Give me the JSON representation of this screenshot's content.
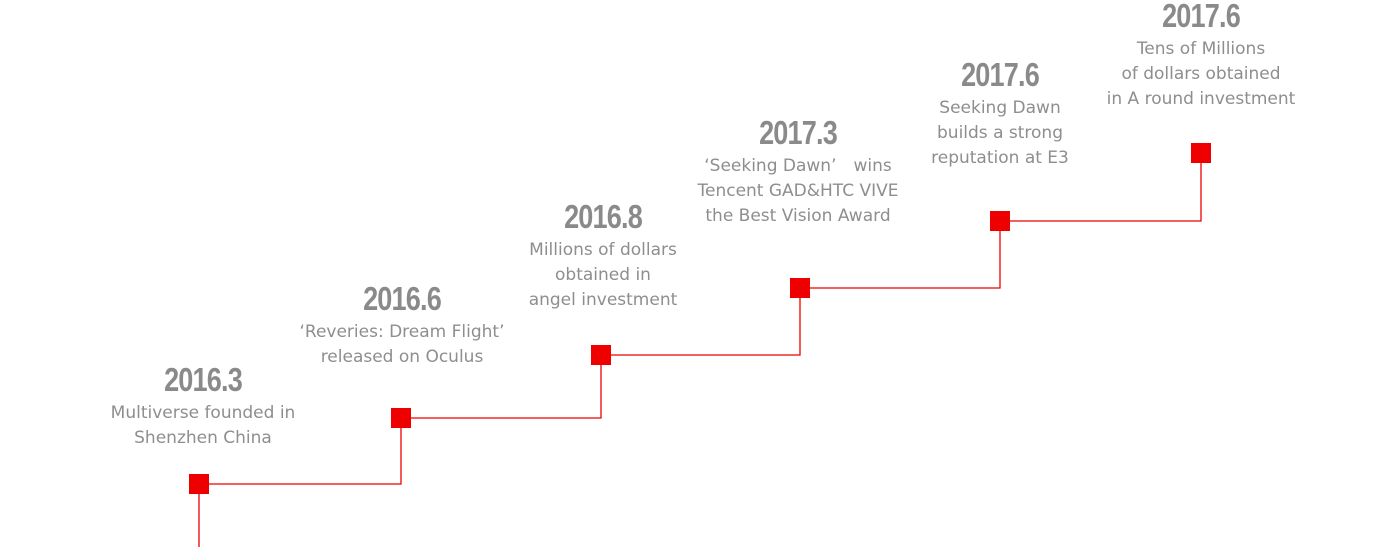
{
  "timeline": {
    "accent_color": "#ee0000",
    "milestones": [
      {
        "year": "2016.3",
        "text": "Multiverse founded in\nShenzhen China"
      },
      {
        "year": "2016.6",
        "text": "‘Reveries: Dream Flight’\nreleased on Oculus"
      },
      {
        "year": "2016.8",
        "text": "Millions of dollars\nobtained in\nangel investment"
      },
      {
        "year": "2017.3",
        "text": "‘Seeking Dawn’　wins\nTencent GAD&HTC VIVE\nthe Best Vision Award"
      },
      {
        "year": "2017.6",
        "text": "Seeking Dawn\nbuilds a strong\nreputation at E3"
      },
      {
        "year": "2017.6",
        "text": "Tens of Millions\nof dollars obtained\nin A round investment"
      }
    ]
  }
}
